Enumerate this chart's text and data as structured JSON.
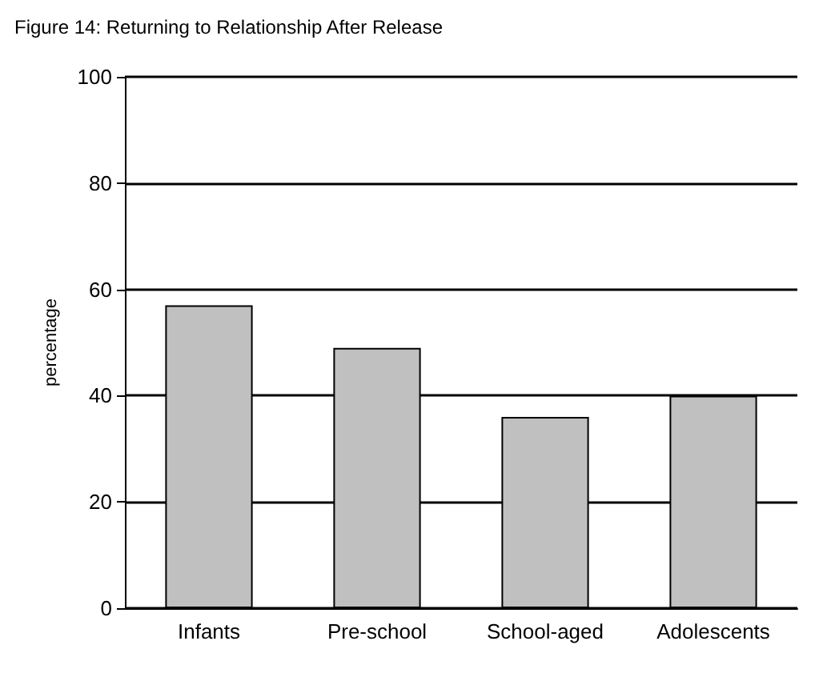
{
  "chart_data": {
    "type": "bar",
    "title": "Figure 14: Returning to Relationship After Release",
    "ylabel": "percentage",
    "categories": [
      "Infants",
      "Pre-school",
      "School-aged",
      "Adolescents"
    ],
    "values": [
      57,
      49,
      36,
      40
    ],
    "color": "#c0c0c0",
    "ylim": [
      0,
      100
    ],
    "yticks": [
      0,
      20,
      40,
      60,
      80,
      100
    ],
    "grid": "y"
  }
}
